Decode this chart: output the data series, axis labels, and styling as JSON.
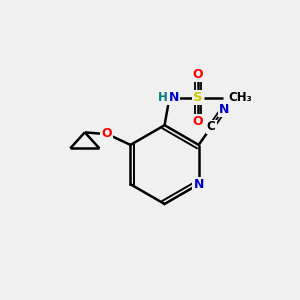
{
  "bg_color": "#f0f0f0",
  "bond_color": "#000000",
  "atom_colors": {
    "N": "#0000cc",
    "O": "#ff0000",
    "S": "#cccc00",
    "C": "#000000",
    "H": "#008080"
  },
  "figsize": [
    3.0,
    3.0
  ],
  "dpi": 100
}
